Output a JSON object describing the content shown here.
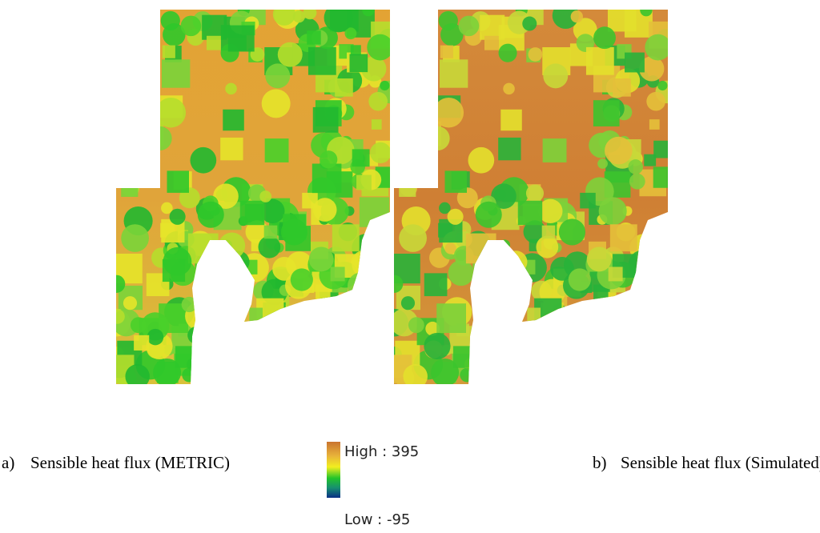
{
  "figure": {
    "panel_a": {
      "letter": "a)",
      "caption": "Sensible heat flux (METRIC)"
    },
    "panel_b": {
      "letter": "b)",
      "caption": "Sensible heat flux (Simulated)"
    },
    "legend": {
      "high": "High : 395",
      "low": "Low : -95"
    }
  }
}
